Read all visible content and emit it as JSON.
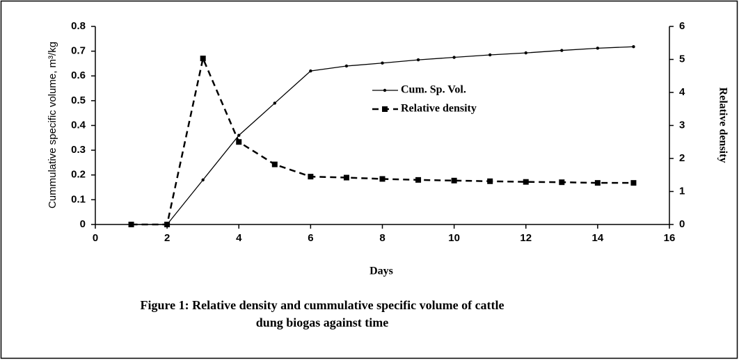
{
  "chart_data": {
    "type": "line",
    "x": [
      1,
      2,
      3,
      4,
      5,
      6,
      7,
      8,
      9,
      10,
      11,
      12,
      13,
      14,
      15
    ],
    "series": [
      {
        "name": "Cum. Sp. Vol.",
        "color": "#000000",
        "style": "solid",
        "marker": "dot",
        "values": [
          0,
          0,
          0.18,
          0.36,
          0.49,
          0.62,
          0.64,
          0.652,
          0.665,
          0.675,
          0.685,
          0.693,
          0.703,
          0.712,
          0.718
        ]
      },
      {
        "name": "Relative density",
        "color": "#000000",
        "style": "dashed",
        "marker": "square",
        "axis": "y2",
        "values": [
          0,
          0,
          5.03,
          2.5,
          1.82,
          1.45,
          1.42,
          1.38,
          1.35,
          1.33,
          1.31,
          1.29,
          1.28,
          1.26,
          1.26
        ]
      }
    ],
    "xlim": [
      0,
      16
    ],
    "xticks": [
      0,
      2,
      4,
      6,
      8,
      10,
      12,
      14,
      16
    ],
    "ylim": [
      0,
      0.8
    ],
    "yticks": [
      0,
      0.1,
      0.2,
      0.3,
      0.4,
      0.5,
      0.6,
      0.7,
      0.8
    ],
    "y2lim": [
      0,
      6
    ],
    "y2ticks": [
      0,
      1,
      2,
      3,
      4,
      5,
      6
    ],
    "xlabel": "Days",
    "ylabel": "Cummulative specific volume, m³/kg",
    "y2label": "Relative density",
    "caption": [
      "Figure 1: Relative density  and cummulative specific volume of cattle",
      "dung biogas against time"
    ],
    "grid": false
  }
}
